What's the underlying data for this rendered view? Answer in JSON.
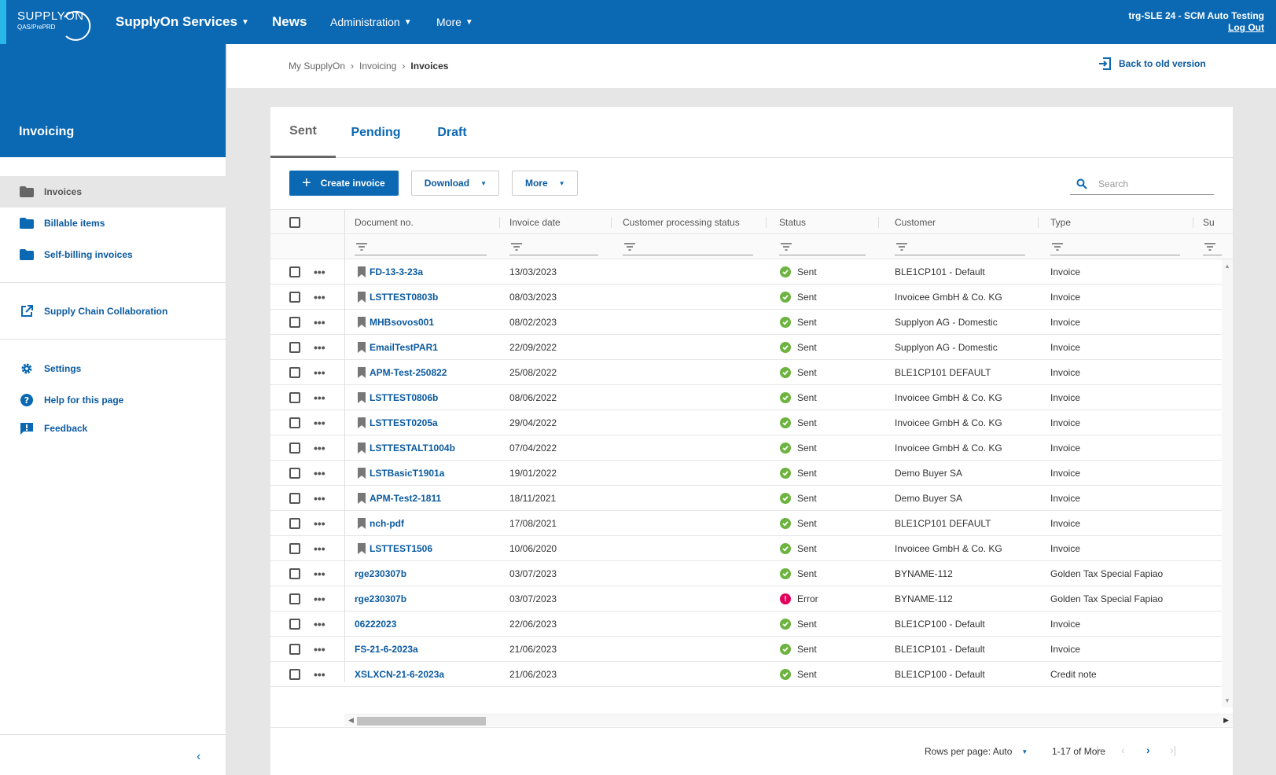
{
  "header": {
    "logo_text": "SUPPLYON",
    "logo_sub": "QAS/PrePRD",
    "nav": {
      "services": "SupplyOn Services",
      "news": "News",
      "administration": "Administration",
      "more": "More"
    },
    "user": "trg-SLE 24 - SCM Auto Testing",
    "logout": "Log Out"
  },
  "sidebar": {
    "title": "Invoicing",
    "items": [
      {
        "label": "Invoices",
        "icon": "folder-icon"
      },
      {
        "label": "Billable items",
        "icon": "folder-icon"
      },
      {
        "label": "Self-billing invoices",
        "icon": "folder-icon"
      },
      {
        "label": "Supply Chain Collaboration",
        "icon": "external-link-icon"
      },
      {
        "label": "Settings",
        "icon": "gear-icon"
      },
      {
        "label": "Help for this page",
        "icon": "help-icon"
      },
      {
        "label": "Feedback",
        "icon": "feedback-icon"
      }
    ]
  },
  "breadcrumb": {
    "items": [
      "My SupplyOn",
      "Invoicing",
      "Invoices"
    ],
    "back_link": "Back to old version"
  },
  "tabs": [
    "Sent",
    "Pending",
    "Draft"
  ],
  "toolbar": {
    "create": "Create invoice",
    "download": "Download",
    "more": "More",
    "search_placeholder": "Search"
  },
  "table": {
    "columns": [
      "Document no.",
      "Invoice date",
      "Customer processing status",
      "Status",
      "Customer",
      "Type",
      "Su"
    ],
    "rows": [
      {
        "doc": "FD-13-3-23a",
        "date": "13/03/2023",
        "status": "Sent",
        "customer": "BLE1CP101 - Default",
        "type": "Invoice",
        "bookmark": true
      },
      {
        "doc": "LSTTEST0803b",
        "date": "08/03/2023",
        "status": "Sent",
        "customer": "Invoicee GmbH & Co. KG",
        "type": "Invoice",
        "bookmark": true
      },
      {
        "doc": "MHBsovos001",
        "date": "08/02/2023",
        "status": "Sent",
        "customer": "Supplyon AG - Domestic",
        "type": "Invoice",
        "bookmark": true
      },
      {
        "doc": "EmailTestPAR1",
        "date": "22/09/2022",
        "status": "Sent",
        "customer": "Supplyon AG - Domestic",
        "type": "Invoice",
        "bookmark": true
      },
      {
        "doc": "APM-Test-250822",
        "date": "25/08/2022",
        "status": "Sent",
        "customer": "BLE1CP101 DEFAULT",
        "type": "Invoice",
        "bookmark": true
      },
      {
        "doc": "LSTTEST0806b",
        "date": "08/06/2022",
        "status": "Sent",
        "customer": "Invoicee GmbH & Co. KG",
        "type": "Invoice",
        "bookmark": true
      },
      {
        "doc": "LSTTEST0205a",
        "date": "29/04/2022",
        "status": "Sent",
        "customer": "Invoicee GmbH & Co. KG",
        "type": "Invoice",
        "bookmark": true
      },
      {
        "doc": "LSTTESTALT1004b",
        "date": "07/04/2022",
        "status": "Sent",
        "customer": "Invoicee GmbH & Co. KG",
        "type": "Invoice",
        "bookmark": true
      },
      {
        "doc": "LSTBasicT1901a",
        "date": "19/01/2022",
        "status": "Sent",
        "customer": "Demo Buyer SA",
        "type": "Invoice",
        "bookmark": true
      },
      {
        "doc": "APM-Test2-1811",
        "date": "18/11/2021",
        "status": "Sent",
        "customer": "Demo Buyer SA",
        "type": "Invoice",
        "bookmark": true
      },
      {
        "doc": "nch-pdf",
        "date": "17/08/2021",
        "status": "Sent",
        "customer": "BLE1CP101 DEFAULT",
        "type": "Invoice",
        "bookmark": true
      },
      {
        "doc": "LSTTEST1506",
        "date": "10/06/2020",
        "status": "Sent",
        "customer": "Invoicee GmbH & Co. KG",
        "type": "Invoice",
        "bookmark": true
      },
      {
        "doc": "rge230307b",
        "date": "03/07/2023",
        "status": "Sent",
        "customer": "BYNAME-112",
        "type": "Golden Tax Special Fapiao",
        "bookmark": false
      },
      {
        "doc": "rge230307b",
        "date": "03/07/2023",
        "status": "Error",
        "customer": "BYNAME-112",
        "type": "Golden Tax Special Fapiao",
        "bookmark": false
      },
      {
        "doc": "06222023",
        "date": "22/06/2023",
        "status": "Sent",
        "customer": "BLE1CP100 - Default",
        "type": "Invoice",
        "bookmark": false
      },
      {
        "doc": "FS-21-6-2023a",
        "date": "21/06/2023",
        "status": "Sent",
        "customer": "BLE1CP101 - Default",
        "type": "Invoice",
        "bookmark": false
      },
      {
        "doc": "XSLXCN-21-6-2023a",
        "date": "21/06/2023",
        "status": "Sent",
        "customer": "BLE1CP100 - Default",
        "type": "Credit note",
        "bookmark": false
      }
    ]
  },
  "pager": {
    "rows_per_page": "Rows per page: Auto",
    "range": "1-17 of More"
  },
  "colors": {
    "brand": "#0b68b3",
    "ok": "#6cb33f",
    "error": "#e2005a"
  }
}
